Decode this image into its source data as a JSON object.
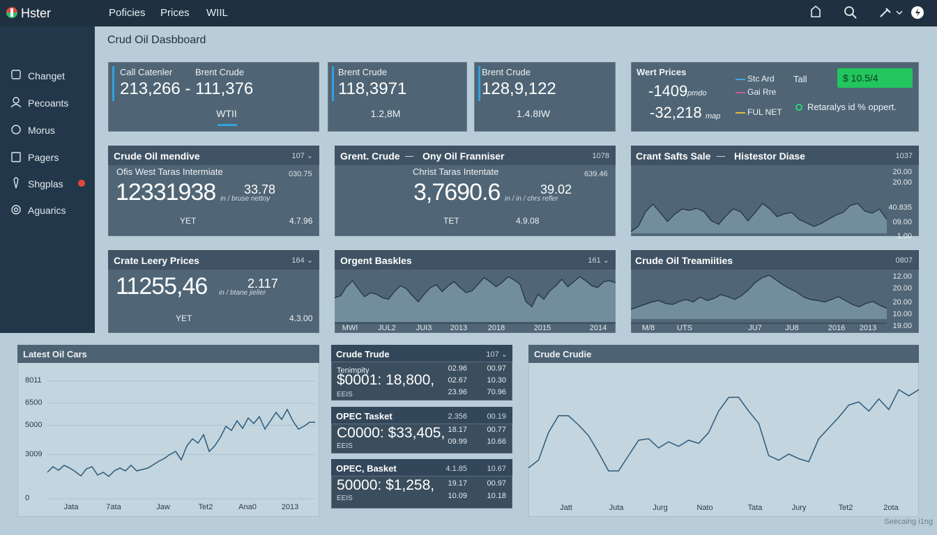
{
  "header": {
    "logo": "Hster",
    "nav": [
      "Poficies",
      "Prices",
      "WIIL"
    ]
  },
  "sidebar": {
    "items": [
      "Changet",
      "Pecoants",
      "Morus",
      "Pagers",
      "Shgplas",
      "Aguarics"
    ]
  },
  "title": "Crud Oil Dasbboard",
  "cards": [
    {
      "labels": [
        "Call Catenler",
        "Brent Crude"
      ],
      "value": "213,266 - 111,376",
      "sub": "WTII"
    },
    {
      "labels": [
        "Brent Crude"
      ],
      "value": "118,3971",
      "sub": "1.2,8M"
    },
    {
      "labels": [
        "Brent Crude"
      ],
      "value": "128,9,122",
      "sub": "1.4.8IW"
    }
  ],
  "prices": {
    "title": "Wert Prices",
    "rows": [
      {
        "value": "-1409",
        "unit": "pmdo"
      },
      {
        "value": "-32,218",
        "unit": "map"
      }
    ],
    "legend": [
      {
        "name": "Stc Ard",
        "color": "#3fa9e0"
      },
      {
        "name": "Gai Rre",
        "color": "#c0609a"
      },
      {
        "name": "FUL NET",
        "color": "#e0c040"
      }
    ],
    "label": "Tall",
    "badge": "$ 10.5/4",
    "note": "Retaralys id % oppert."
  },
  "stats": [
    {
      "titles": [
        "Crude Oil mendive"
      ],
      "tag": "107 ⌄",
      "subtitle": "Ofis West Taras Intermiate",
      "side": "030.75",
      "value": "12331938",
      "delta": "33.78",
      "unit": "in / bruse nettoy",
      "foot": [
        "YET",
        "4.7.96"
      ]
    },
    {
      "titles": [
        "Grent. Crude",
        "Ony Oil Franniser"
      ],
      "tag": "1078",
      "subtitle": "Christ Taras Intentate",
      "side": "639.46",
      "value": "3,7690.6",
      "delta": "39.02",
      "unit": "in / in / chrs refler",
      "foot": [
        "TET",
        "4.9.08"
      ]
    },
    {
      "titles": [
        "Crate Leery Prices"
      ],
      "tag": "164 ⌄",
      "value": "11255,46",
      "delta": "2.117",
      "unit": "in / btane jieller",
      "foot": [
        "YET",
        "4.3.00"
      ]
    }
  ],
  "trends": [
    {
      "titles": [
        "Crant Safts Sale",
        "Histestor Diase"
      ],
      "tag": "1037",
      "y_labels": [
        "20.00",
        "20.00",
        "40.835",
        "09.00",
        "1.00"
      ],
      "ylim": [
        0,
        100
      ],
      "values": [
        5,
        20,
        62,
        84,
        60,
        34,
        55,
        70,
        66,
        72,
        62,
        36,
        26,
        50,
        70,
        62,
        36,
        60,
        86,
        70,
        48,
        56,
        60,
        40,
        30,
        20,
        28,
        40,
        52,
        60,
        80,
        86,
        64,
        58,
        70,
        40
      ]
    },
    {
      "titles": [
        "Orgent Baskles"
      ],
      "tag": "161 ⌄",
      "x_labels": [
        "MWI",
        "JUL2",
        "JUI3",
        "2013",
        "2018",
        "2015",
        "2014"
      ],
      "ylim": [
        0,
        100
      ],
      "values": [
        48,
        52,
        70,
        82,
        65,
        50,
        58,
        55,
        48,
        45,
        60,
        72,
        66,
        52,
        40,
        55,
        68,
        74,
        60,
        72,
        80,
        68,
        58,
        62,
        75,
        88,
        80,
        70,
        78,
        90,
        84,
        75,
        40,
        30,
        55,
        45,
        62,
        72,
        85,
        70,
        80,
        90,
        82,
        72,
        68,
        80,
        82,
        78
      ]
    },
    {
      "titles": [
        "Crude Oil Treamiities"
      ],
      "tag": "0807",
      "y_labels": [
        "12.00",
        "20.00",
        "20.00",
        "10.00",
        "19.00"
      ],
      "x_labels": [
        "M/8",
        "UTS",
        "JU7",
        "JU8",
        "2016",
        "2013"
      ],
      "ylim": [
        0,
        100
      ],
      "values": [
        20,
        25,
        30,
        35,
        38,
        32,
        30,
        36,
        40,
        35,
        45,
        38,
        42,
        50,
        46,
        40,
        48,
        60,
        75,
        85,
        90,
        80,
        70,
        62,
        55,
        45,
        40,
        38,
        35,
        40,
        46,
        38,
        30,
        25,
        32,
        36,
        28,
        22
      ]
    }
  ],
  "latest": {
    "title": "Latest Oil Cars",
    "yticks": [
      8011,
      6500,
      5000,
      3009,
      0
    ],
    "ylim": [
      0,
      8011
    ],
    "x_labels": [
      "Jata",
      "7ata",
      "Jaw",
      "Tet2",
      "Ana0",
      "2013"
    ],
    "values": [
      1800,
      2180,
      1940,
      2280,
      2090,
      1850,
      1560,
      2040,
      2180,
      1610,
      1800,
      1520,
      1900,
      2090,
      1900,
      2280,
      1900,
      1990,
      2090,
      2320,
      2560,
      2750,
      3030,
      3220,
      2650,
      3600,
      4080,
      3790,
      4360,
      3220,
      3600,
      4170,
      4930,
      4650,
      5310,
      4790,
      5500,
      5120,
      5590,
      4740,
      5310,
      5880,
      5400,
      6070,
      5310,
      4740,
      4930,
      5210,
      5210
    ]
  },
  "tickers": [
    {
      "title": "Crude Trude",
      "tags": [
        "107 ⌄"
      ],
      "caption": "Tenimpity",
      "value": "$0001: 18,800,",
      "foot": "EEIS",
      "cols": [
        [
          "02.96",
          "02.67",
          "23.96"
        ],
        [
          "00.97",
          "10.30",
          "70.96"
        ]
      ]
    },
    {
      "title": "OPEC Tasket",
      "tags": [
        "2.356",
        "00.19"
      ],
      "value": "C0000: $33,405,",
      "foot": "EEIS",
      "cols": [
        [
          "18.17",
          "09.99"
        ],
        [
          "00.77",
          "10.66"
        ]
      ]
    },
    {
      "title": "OPEC, Basket",
      "tags": [
        "4.1.85",
        "10.67"
      ],
      "value": "50000: $1,258,",
      "foot": "EEIS",
      "cols": [
        [
          "19.17",
          "10.09"
        ],
        [
          "00.97",
          "10.18"
        ]
      ]
    }
  ],
  "crudie": {
    "title": "Crude Crudie",
    "x_labels": [
      "Jatt",
      "Juta",
      "Jurg",
      "Nato",
      "Tata",
      "Jury",
      "Tet2",
      "2ota"
    ],
    "ylim": [
      0,
      100
    ],
    "values": [
      32,
      37,
      55,
      66,
      66,
      60,
      53,
      42,
      30,
      30,
      40,
      50,
      51,
      45,
      49,
      46,
      50,
      48,
      55,
      69,
      78,
      78,
      69,
      61,
      40,
      37,
      41,
      38,
      36,
      51,
      58,
      65,
      73,
      75,
      69,
      77,
      70,
      83,
      79,
      83
    ]
  },
  "footer": "Seecaing i1ng"
}
